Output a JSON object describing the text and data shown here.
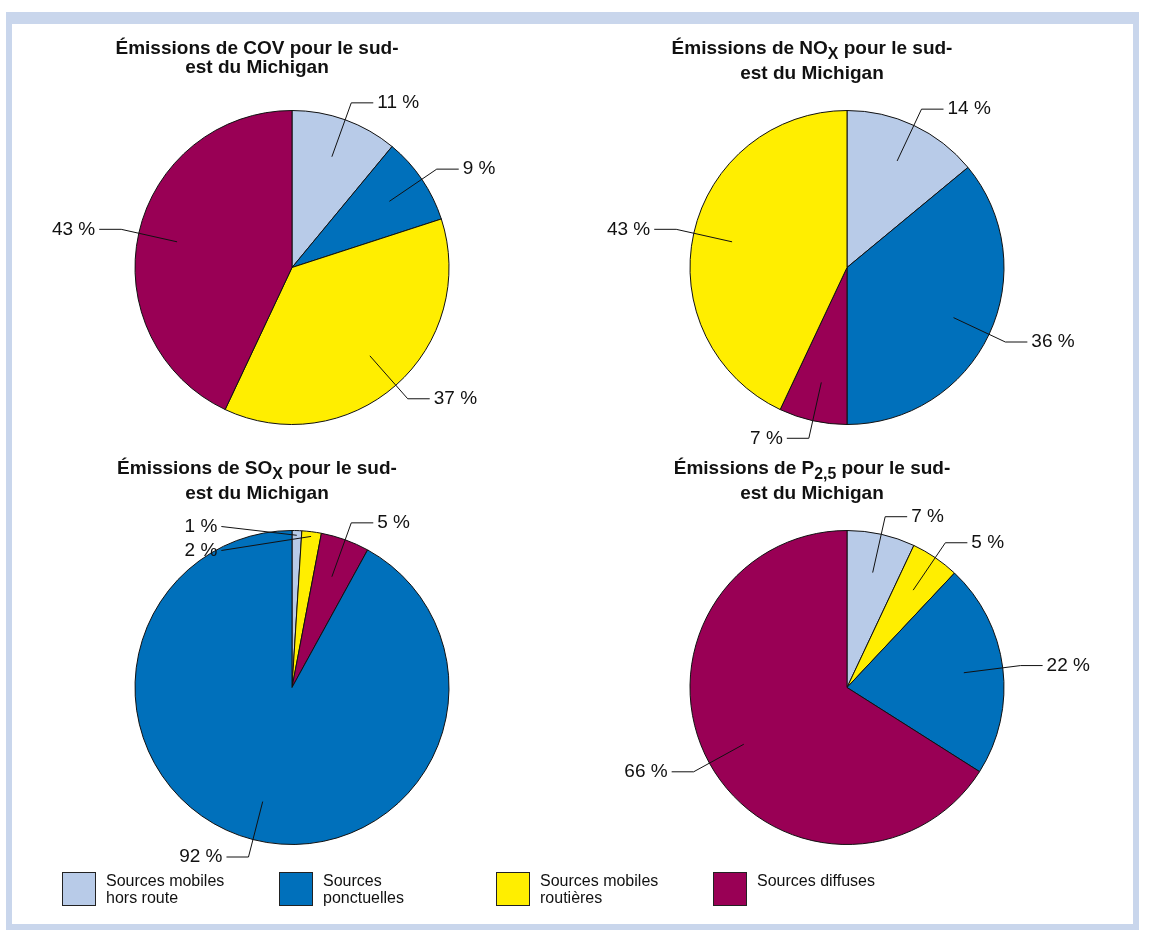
{
  "chart_data": [
    {
      "type": "pie",
      "title": "Émissions de COV pour le sud-est du Michigan",
      "categories": [
        "Sources mobiles hors route",
        "Sources ponctuelles",
        "Sources mobiles routières",
        "Sources diffuses"
      ],
      "values": [
        11,
        9,
        37,
        43
      ],
      "value_labels": [
        "11 %",
        "9 %",
        "37 %",
        "43 %"
      ],
      "colors": [
        "#b8cbe8",
        "#0070bb",
        "#ffee00",
        "#990055"
      ],
      "legend": "bottom"
    },
    {
      "type": "pie",
      "title": "Émissions de NO$_{X}$ pour le sud-est du Michigan",
      "categories": [
        null,
        null,
        null,
        null
      ],
      "values": [
        14,
        36,
        7,
        43
      ],
      "value_labels": [
        "14 %",
        "36 %",
        "7 %",
        "43 %"
      ],
      "colors": [
        "#b8cbe8",
        "#0070bb",
        "#990055",
        "#ffee00"
      ]
    },
    {
      "type": "pie",
      "title": "Émissions de SO$_{X}$ pour le sud-est du Michigan",
      "categories": [
        null,
        null,
        null,
        null
      ],
      "values": [
        1,
        2,
        5,
        92
      ],
      "value_labels": [
        "1 %",
        "2 %",
        "5 %",
        "92 %"
      ],
      "colors": [
        "#b8cbe8",
        "#ffee00",
        "#990055",
        "#0070bb"
      ]
    },
    {
      "type": "pie",
      "title": "Émissions de P$_{2,5}$ pour le sud-est du Michigan",
      "categories": [
        null,
        null,
        null,
        null
      ],
      "values": [
        7,
        5,
        22,
        66
      ],
      "value_labels": [
        "7 %",
        "5 %",
        "22 %",
        "66 %"
      ],
      "colors": [
        "#b8cbe8",
        "#ffee00",
        "#0070bb",
        "#990055"
      ]
    }
  ]
}
